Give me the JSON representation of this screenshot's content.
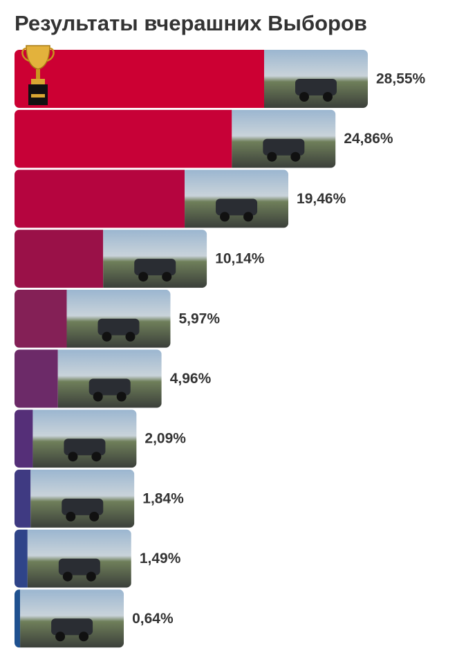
{
  "chart_data": {
    "type": "bar",
    "orientation": "horizontal",
    "title": "Результаты вчерашних Выборов",
    "values": [
      28.55,
      24.86,
      19.46,
      10.14,
      5.97,
      4.96,
      2.09,
      1.84,
      1.49,
      0.64
    ],
    "value_labels": [
      "28,55%",
      "24,86%",
      "19,46%",
      "10,14%",
      "5,97%",
      "4,96%",
      "2,09%",
      "1,84%",
      "1,49%",
      "0,64%"
    ],
    "colors": [
      "#cc0033",
      "#c70137",
      "#b5053f",
      "#9a1148",
      "#842056",
      "#6c2a68",
      "#552f78",
      "#3f3a82",
      "#2f4489",
      "#1f5190"
    ]
  }
}
